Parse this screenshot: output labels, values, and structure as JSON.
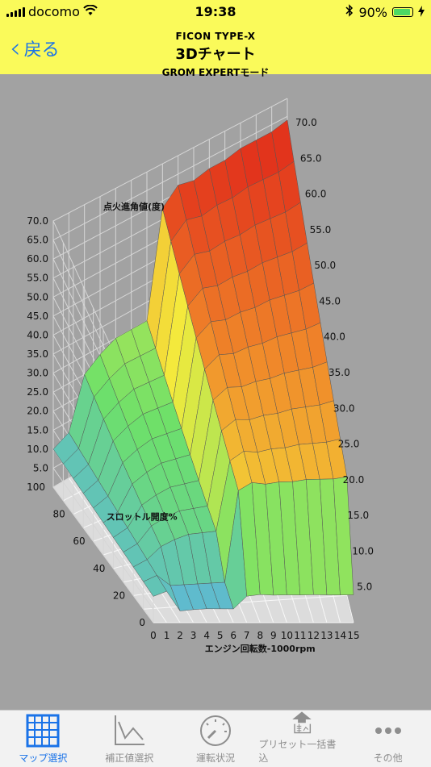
{
  "status_bar": {
    "carrier": "docomo",
    "time": "19:38",
    "battery": "90%"
  },
  "header": {
    "back_label": "戻る",
    "title_top": "FICON TYPE-X",
    "title_main": "3Dチャート",
    "title_sub": "GROM EXPERTモード"
  },
  "chart_data": {
    "type": "surface3d",
    "title": "点火進角値(度)",
    "xlabel": "エンジン回転数-1000rpm",
    "ylabel": "スロットル開度%",
    "x_ticks": [
      "0",
      "1",
      "2",
      "3",
      "4",
      "5",
      "6",
      "7",
      "8",
      "9",
      "10",
      "11",
      "12",
      "13",
      "14",
      "15"
    ],
    "y_ticks": [
      "0",
      "20",
      "40",
      "60",
      "80",
      "100"
    ],
    "z_ticks_left": [
      "5.0",
      "10.0",
      "15.0",
      "20.0",
      "25.0",
      "30.0",
      "35.0",
      "40.0",
      "45.0",
      "50.0",
      "55.0",
      "60.0",
      "65.0",
      "70.0"
    ],
    "z_ticks_right": [
      "5.0",
      "10.0",
      "15.0",
      "20.0",
      "25.0",
      "30.0",
      "35.0",
      "40.0",
      "45.0",
      "50.0",
      "55.0",
      "60.0",
      "65.0",
      "70.0"
    ],
    "zlim": [
      0,
      70
    ],
    "rpm_profile": [
      {
        "x": 0,
        "z": 10
      },
      {
        "x": 1,
        "z": 12
      },
      {
        "x": 2,
        "z": 25
      },
      {
        "x": 3,
        "z": 28
      },
      {
        "x": 4,
        "z": 30
      },
      {
        "x": 5,
        "z": 30
      },
      {
        "x": 6,
        "z": 30
      },
      {
        "x": 7,
        "z": 58
      },
      {
        "x": 8,
        "z": 62
      },
      {
        "x": 9,
        "z": 61
      },
      {
        "x": 10,
        "z": 62
      },
      {
        "x": 11,
        "z": 62
      },
      {
        "x": 12,
        "z": 63
      },
      {
        "x": 13,
        "z": 63
      },
      {
        "x": 14,
        "z": 63
      },
      {
        "x": 15,
        "z": 64
      }
    ],
    "colors": [
      "#5aaef0",
      "#6de06a",
      "#f4ea3c",
      "#f08a2a",
      "#e2341c"
    ]
  },
  "tabs": [
    {
      "label": "マップ選択",
      "icon": "grid-icon",
      "active": true
    },
    {
      "label": "補正値選択",
      "icon": "line-chart-icon",
      "active": false
    },
    {
      "label": "運転状況",
      "icon": "gauge-icon",
      "active": false
    },
    {
      "label": "プリセット一括書込",
      "icon": "upload-icon",
      "active": false
    },
    {
      "label": "その他",
      "icon": "more-icon",
      "active": false
    }
  ]
}
